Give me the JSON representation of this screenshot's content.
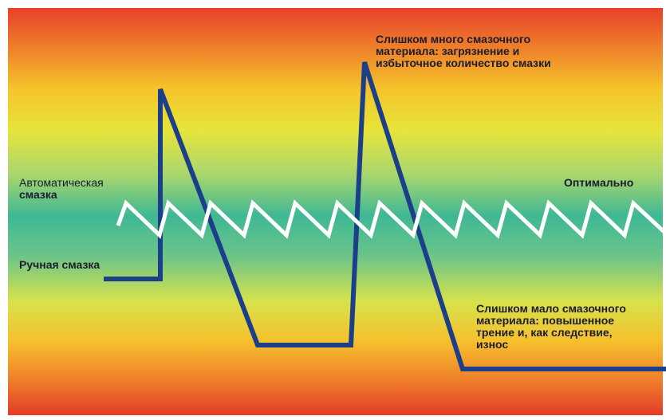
{
  "chart_data": {
    "type": "line",
    "title": "",
    "xlabel": "",
    "ylabel": "",
    "series": [
      {
        "name": "Ручная смазка",
        "color": "#1c3f8a",
        "points": [
          [
            130,
            350
          ],
          [
            201,
            350
          ],
          [
            201,
            112
          ],
          [
            323,
            433
          ],
          [
            440,
            433
          ],
          [
            457,
            78
          ],
          [
            580,
            463
          ],
          [
            835,
            463
          ]
        ]
      },
      {
        "name": "Автоматическая смазка",
        "color": "#ffffff",
        "points": [
          [
            148,
            283
          ],
          [
            158,
            255
          ],
          [
            200,
            295
          ],
          [
            211,
            255
          ],
          [
            253,
            295
          ],
          [
            264,
            255
          ],
          [
            306,
            295
          ],
          [
            317,
            255
          ],
          [
            359,
            295
          ],
          [
            370,
            255
          ],
          [
            412,
            295
          ],
          [
            423,
            255
          ],
          [
            465,
            295
          ],
          [
            476,
            255
          ],
          [
            518,
            295
          ],
          [
            529,
            255
          ],
          [
            571,
            295
          ],
          [
            582,
            255
          ],
          [
            624,
            295
          ],
          [
            635,
            255
          ],
          [
            677,
            295
          ],
          [
            688,
            255
          ],
          [
            730,
            295
          ],
          [
            741,
            255
          ],
          [
            783,
            295
          ],
          [
            794,
            255
          ],
          [
            835,
            293
          ]
        ]
      }
    ],
    "annotations": [
      "Слишком много смазочного материала: загрязнение и избыточное количество смазки",
      "Оптимально",
      "Слишком мало смазочного материала: повышенное трение и, как следствие, износ"
    ]
  },
  "labels": {
    "auto_line1": "Автоматическая",
    "auto_line2": "смазка",
    "manual": "Ручная смазка",
    "optimal": "Оптимально",
    "too_much_line1": "Слишком много смазочного",
    "too_much_line2": "материала: загрязнение и",
    "too_much_line3": "избыточное количество смазки",
    "too_little_line1": "Слишком мало смазочного",
    "too_little_line2": "материала: повышенное",
    "too_little_line3": "трение и, как следствие,",
    "too_little_line4": "износ"
  }
}
